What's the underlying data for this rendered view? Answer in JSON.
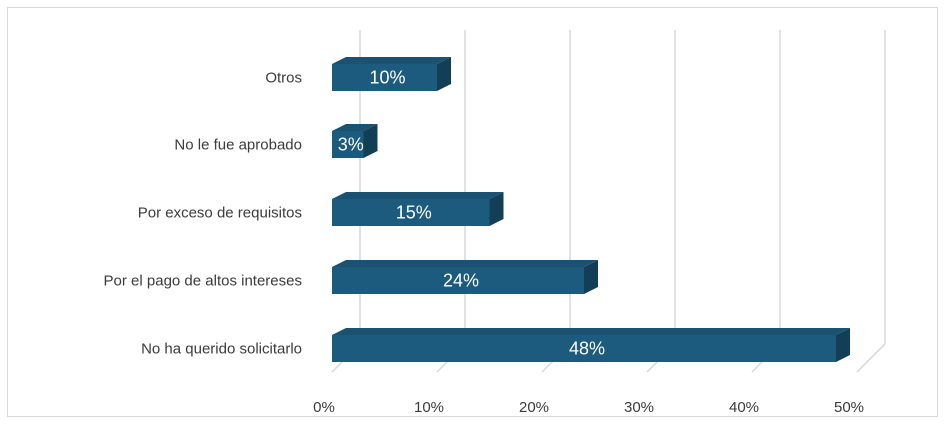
{
  "chart_data": {
    "type": "bar",
    "orientation": "horizontal",
    "style": "3d-clustered-bar",
    "categories": [
      "Otros",
      "No le fue aprobado",
      "Por exceso de requisitos",
      "Por el pago de altos intereses",
      "No ha querido solicitarlo"
    ],
    "values": [
      10,
      3,
      15,
      24,
      48
    ],
    "data_labels": [
      "10%",
      "3%",
      "15%",
      "24%",
      "48%"
    ],
    "xlim": [
      0,
      50
    ],
    "x_ticks": [
      "0%",
      "10%",
      "20%",
      "30%",
      "40%",
      "50%"
    ],
    "title": "",
    "xlabel": "",
    "ylabel": "",
    "grid": "vertical gridlines on",
    "legend": "none",
    "colors": {
      "bar_front": "#1c5b7d",
      "bar_top": "#1b5271",
      "bar_side": "#123e56",
      "gridline": "#d9d9d9"
    }
  }
}
